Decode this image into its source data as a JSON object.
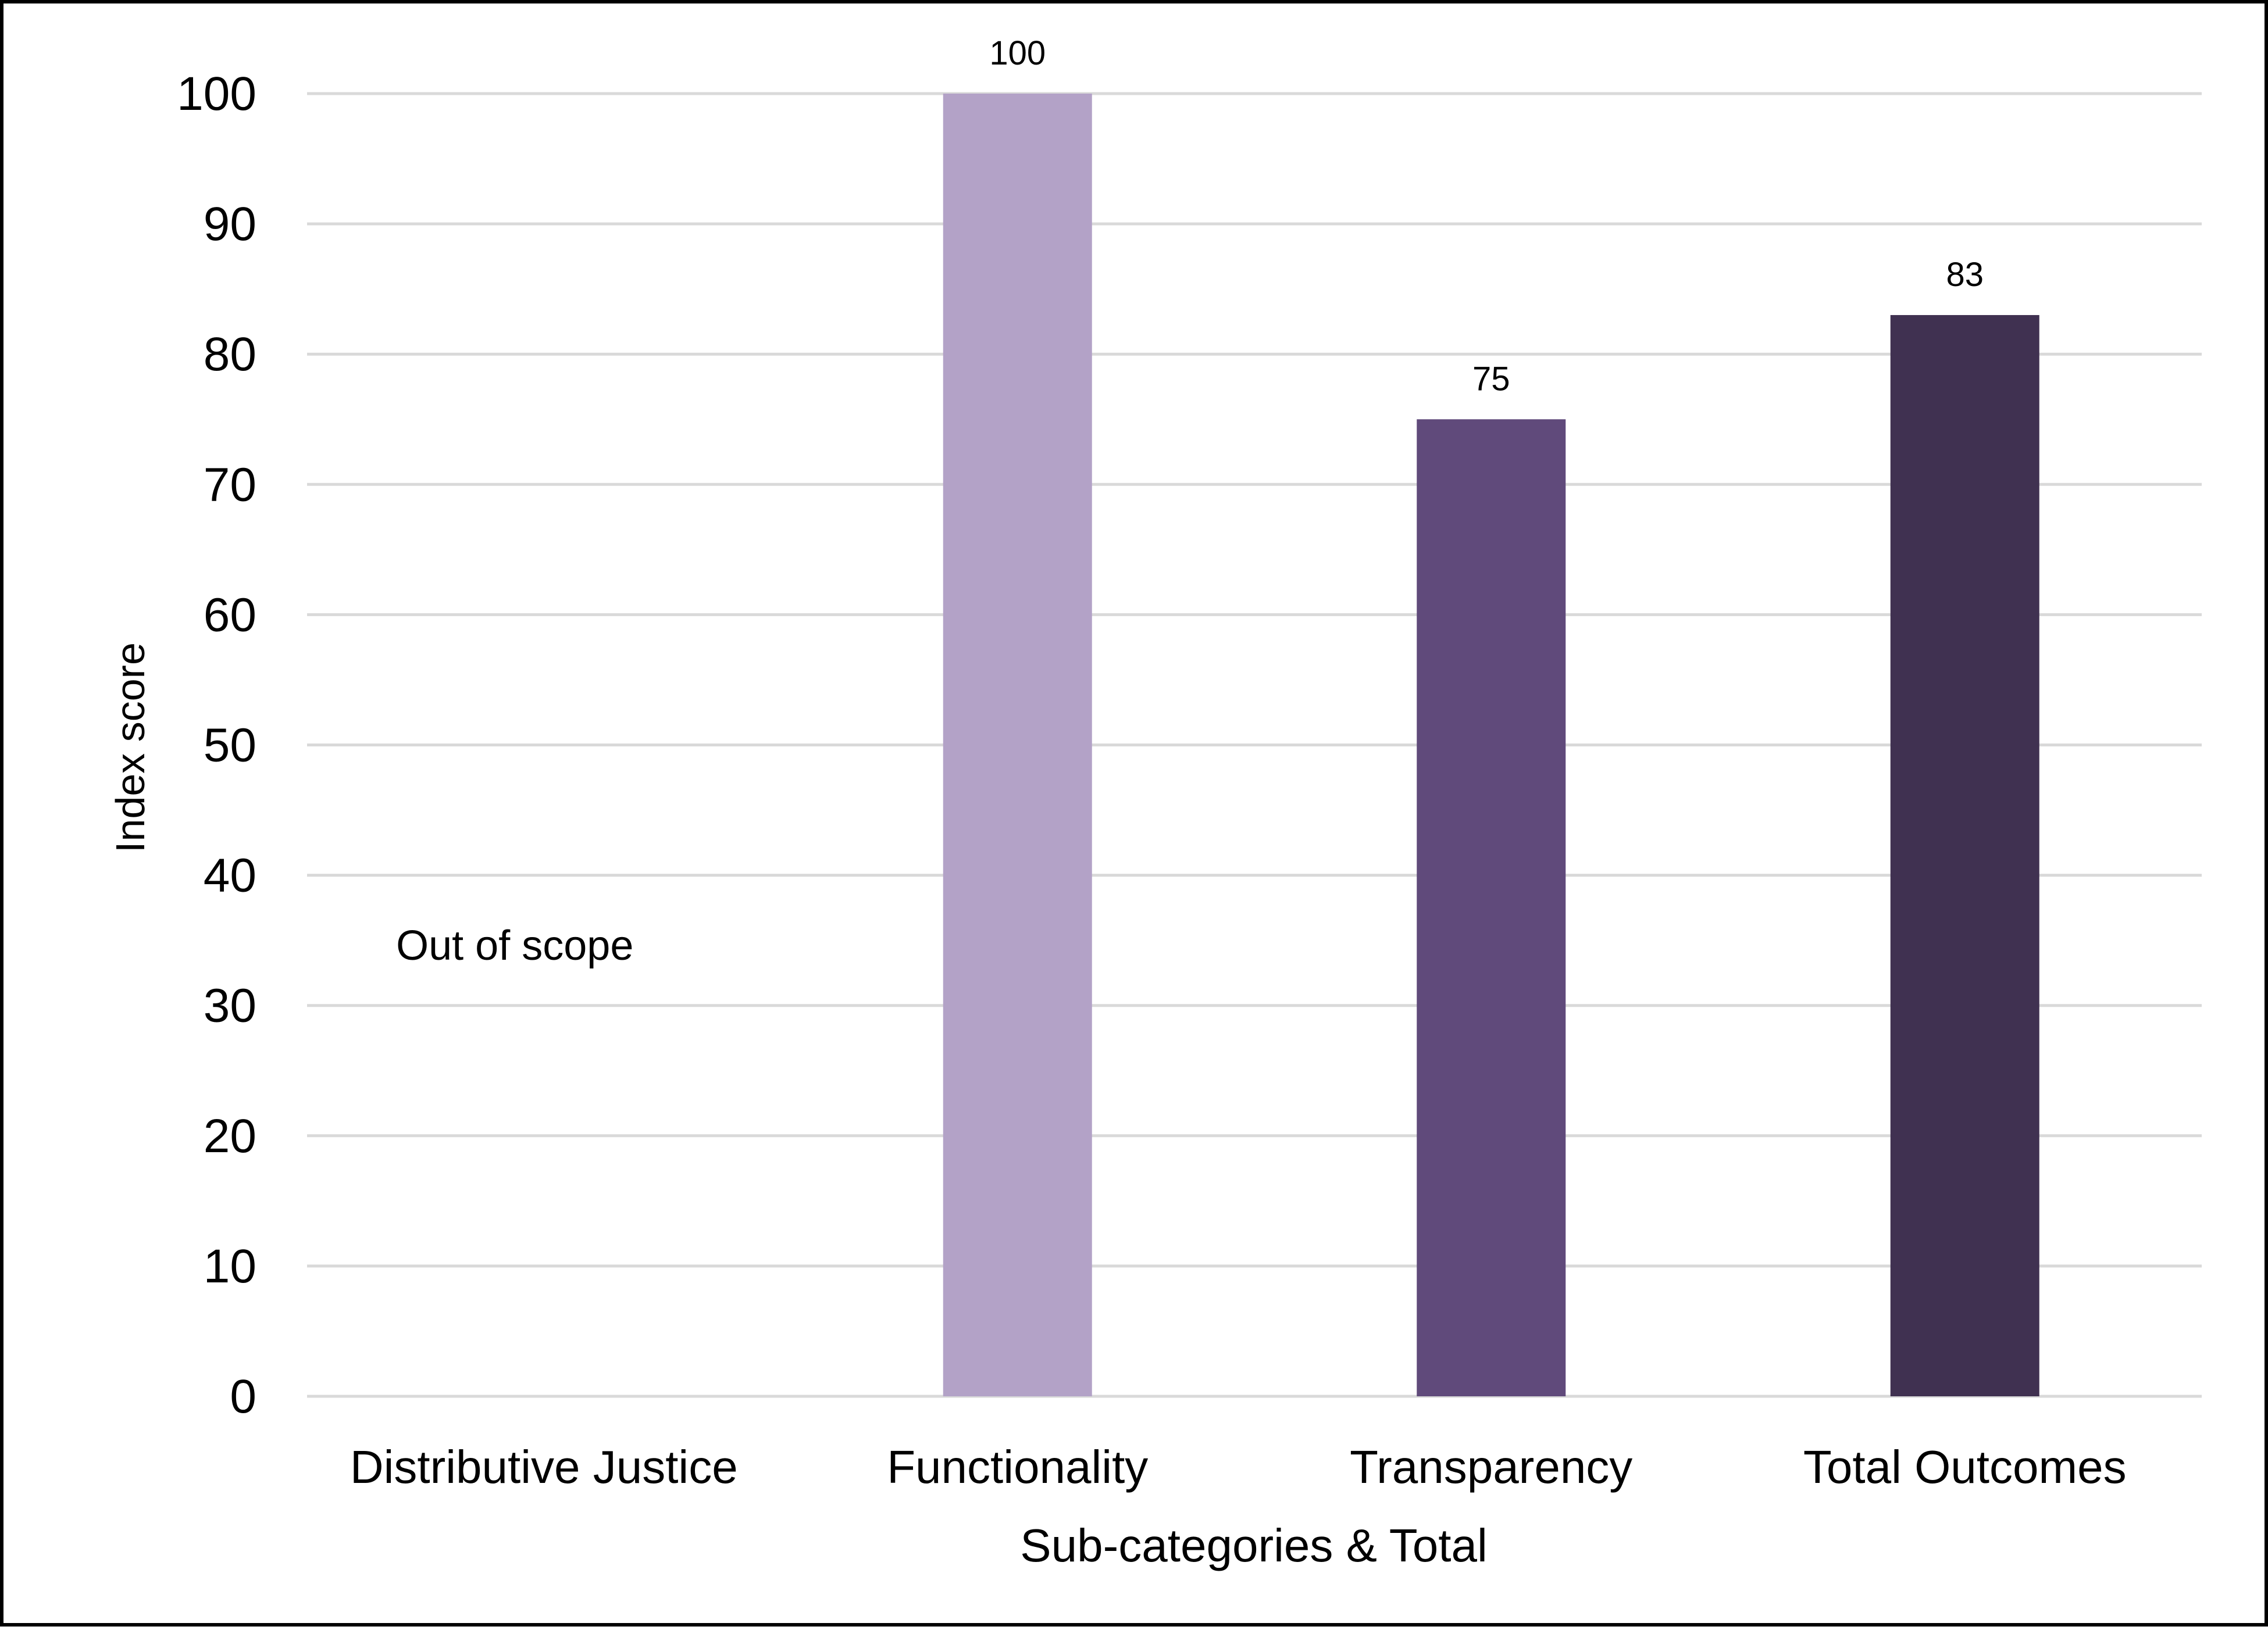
{
  "chart_data": {
    "type": "bar",
    "title": "",
    "xlabel": "Sub-categories & Total",
    "ylabel": "Index score",
    "ylim": [
      0,
      100
    ],
    "yticks": [
      0,
      10,
      20,
      30,
      40,
      50,
      60,
      70,
      80,
      90,
      100
    ],
    "grid": true,
    "legend": "none",
    "categories": [
      "Distributive Justice",
      "Functionality",
      "Transparency",
      "Total Outcomes"
    ],
    "values": [
      null,
      100,
      75,
      83
    ],
    "data_labels": [
      "",
      "100",
      "75",
      "83"
    ],
    "colors": [
      "#b3a2c7",
      "#b3a2c7",
      "#604a7b",
      "#403151"
    ],
    "annotations": [
      {
        "category": "Distributive Justice",
        "text": "Out of scope"
      }
    ]
  },
  "style": {
    "gridline_color": "#d9d9d9",
    "frame_color": "#000000"
  }
}
